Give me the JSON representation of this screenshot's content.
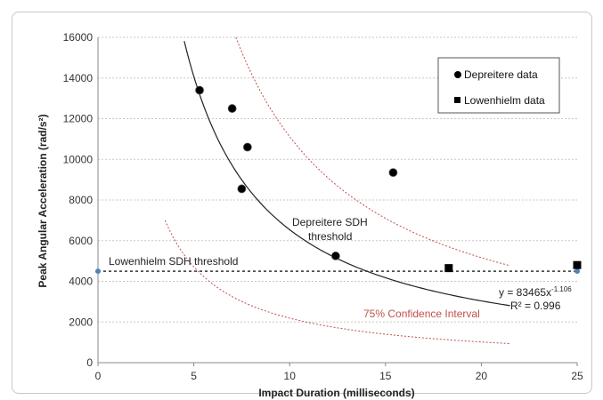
{
  "chart_data": {
    "type": "scatter",
    "title": "",
    "xlabel": "Impact Duration (milliseconds)",
    "ylabel": "Peak Angular Acceleration (rad/s²)",
    "xlim": [
      0,
      25
    ],
    "ylim": [
      0,
      16000
    ],
    "x_ticks": [
      0,
      5,
      10,
      15,
      20,
      25
    ],
    "y_ticks": [
      0,
      2000,
      4000,
      6000,
      8000,
      10000,
      12000,
      14000,
      16000
    ],
    "grid": "horizontal dashed",
    "legend_position": "top-right",
    "series": [
      {
        "name": "Depreitere data",
        "marker": "circle",
        "color": "#000000",
        "points": [
          {
            "x": 5.3,
            "y": 13400
          },
          {
            "x": 7.0,
            "y": 12500
          },
          {
            "x": 7.8,
            "y": 10600
          },
          {
            "x": 7.5,
            "y": 8550
          },
          {
            "x": 12.4,
            "y": 5250
          },
          {
            "x": 15.4,
            "y": 9350
          }
        ]
      },
      {
        "name": "Lowenhielm data",
        "marker": "square",
        "color": "#000000",
        "points": [
          {
            "x": 18.3,
            "y": 4650
          },
          {
            "x": 25.0,
            "y": 4800
          }
        ]
      }
    ],
    "threshold_line": {
      "label": "Lowenhielm SDH threshold",
      "y": 4500,
      "color": "#333333",
      "style": "dotted"
    },
    "threshold_endpoints": [
      {
        "x": 0,
        "y": 4500
      },
      {
        "x": 25,
        "y": 4500
      }
    ],
    "fit_curve": {
      "label_line1": "Depreitere SDH",
      "label_line2": "threshold",
      "equation_prefix": "y = 83465x",
      "equation_exponent": "-1.106",
      "r_squared": "R² = 0.996",
      "a": 83465,
      "b": -1.106,
      "x_range": [
        4.5,
        21.5
      ],
      "color": "#222222"
    },
    "confidence_interval": {
      "label": "75% Confidence Interval",
      "color": "#c0504d",
      "upper_factor": 1.7,
      "lower_factor": 0.335,
      "upper_x_range": [
        5.7,
        21.5
      ],
      "lower_x_range": [
        3.5,
        21.5
      ]
    }
  }
}
